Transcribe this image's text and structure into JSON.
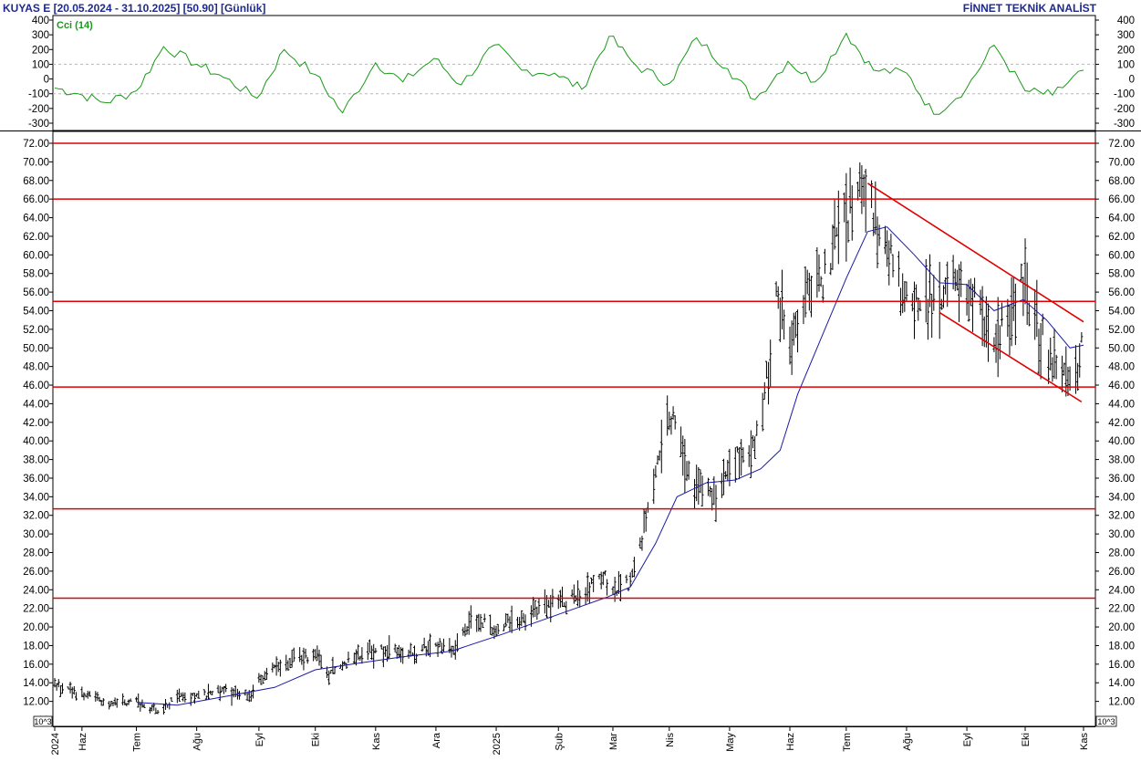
{
  "header": {
    "left": "KUYAS E  [20.05.2024 - 31.10.2025]  [50.90]  [Günlük]",
    "right": "FİNNET TEKNİK ANALİST"
  },
  "colors": {
    "header": "#1f2a8c",
    "price_bars": "#000000",
    "moving_average": "#1a1aa6",
    "cci": "#1a9a1a",
    "horizontal_levels": "#e00000",
    "channel": "#e00000",
    "grid": "#c8c8c8"
  },
  "chart_data": [
    {
      "type": "line",
      "name": "cci-panel",
      "legend": "Cci (14)",
      "ylim": [
        -300,
        400
      ],
      "yticks": [
        400,
        300,
        200,
        100,
        0,
        -100,
        -200,
        -300
      ],
      "y_labels": [
        "400",
        "300",
        "200",
        "100",
        "0",
        "-100",
        "-200",
        "-300"
      ],
      "reference_lines": [
        100,
        -100
      ],
      "x": [
        "2024-05-20",
        "2024-06-01",
        "2024-06-15",
        "2024-07-01",
        "2024-07-15",
        "2024-08-01",
        "2024-08-15",
        "2024-09-01",
        "2024-09-15",
        "2024-10-01",
        "2024-10-15",
        "2024-11-01",
        "2024-11-15",
        "2024-12-01",
        "2024-12-15",
        "2025-01-01",
        "2025-01-15",
        "2025-02-01",
        "2025-02-15",
        "2025-03-01",
        "2025-03-15",
        "2025-04-01",
        "2025-04-15",
        "2025-05-01",
        "2025-05-15",
        "2025-06-01",
        "2025-06-15",
        "2025-07-01",
        "2025-07-15",
        "2025-08-01",
        "2025-08-15",
        "2025-09-01",
        "2025-09-15",
        "2025-10-01",
        "2025-10-15",
        "2025-10-31"
      ],
      "values": [
        -60,
        -100,
        -160,
        -80,
        220,
        100,
        10,
        -130,
        200,
        30,
        -230,
        110,
        -20,
        140,
        -40,
        230,
        60,
        40,
        -70,
        290,
        90,
        -30,
        280,
        70,
        -140,
        120,
        -20,
        310,
        60,
        40,
        -240,
        -60,
        230,
        -80,
        -110,
        60
      ]
    },
    {
      "type": "candlestick",
      "name": "price-panel",
      "ylim": [
        10,
        73
      ],
      "yticks": [
        10,
        12,
        14,
        16,
        18,
        20,
        22,
        24,
        26,
        28,
        30,
        32,
        34,
        36,
        38,
        40,
        42,
        44,
        46,
        48,
        50,
        52,
        54,
        56,
        58,
        60,
        62,
        64,
        66,
        68,
        70,
        72
      ],
      "y_labels": [
        "10",
        "12.00",
        "14.00",
        "16.00",
        "18.00",
        "20.00",
        "22.00",
        "24.00",
        "26.00",
        "28.00",
        "30.00",
        "32.00",
        "34.00",
        "36.00",
        "38.00",
        "40.00",
        "42.00",
        "44.00",
        "46.00",
        "48.00",
        "50.00",
        "52.00",
        "54.00",
        "56.00",
        "58.00",
        "60.00",
        "62.00",
        "64.00",
        "66.00",
        "68.00",
        "70.00",
        "72.00"
      ],
      "y_labels_right": [
        "",
        "12.00",
        "14.00",
        "16.00",
        "18.00",
        "20.00",
        "22.00",
        "24.00",
        "26.00",
        "28.00",
        "30.00",
        "32.00",
        "34.00",
        "36.00",
        "38.00",
        "40.00",
        "42.00",
        "44.00",
        "46.00",
        "48.00",
        "50.00",
        "52.00",
        "54.00",
        "56.00",
        "58.00",
        "60.00",
        "62.00",
        "64.00",
        "66.00",
        "68.00",
        "70.00",
        "72.00"
      ],
      "scale_note": "10^3",
      "x_ticks": [
        {
          "date": "2024-05-20",
          "label": "2024"
        },
        {
          "date": "2024-06-03",
          "label": "Haz"
        },
        {
          "date": "2024-07-01",
          "label": "Tem"
        },
        {
          "date": "2024-08-01",
          "label": "Ağu"
        },
        {
          "date": "2024-09-02",
          "label": "Eyl"
        },
        {
          "date": "2024-10-01",
          "label": "Eki"
        },
        {
          "date": "2024-11-01",
          "label": "Kas"
        },
        {
          "date": "2024-12-02",
          "label": "Ara"
        },
        {
          "date": "2025-01-02",
          "label": "2025"
        },
        {
          "date": "2025-02-03",
          "label": "Şub"
        },
        {
          "date": "2025-03-03",
          "label": "Mar"
        },
        {
          "date": "2025-04-01",
          "label": "Nis"
        },
        {
          "date": "2025-05-02",
          "label": "May"
        },
        {
          "date": "2025-06-02",
          "label": "Haz"
        },
        {
          "date": "2025-07-01",
          "label": "Tem"
        },
        {
          "date": "2025-08-01",
          "label": "Ağu"
        },
        {
          "date": "2025-09-01",
          "label": "Eyl"
        },
        {
          "date": "2025-10-01",
          "label": "Eki"
        },
        {
          "date": "2025-10-31",
          "label": "Kas"
        }
      ],
      "horizontal_levels": [
        72.0,
        66.0,
        55.0,
        45.8,
        32.7,
        23.1
      ],
      "channel": {
        "upper": {
          "from": {
            "date": "2025-07-12",
            "value": 67.7
          },
          "to": {
            "date": "2025-10-31",
            "value": 52.8
          }
        },
        "lower": {
          "from": {
            "date": "2025-08-18",
            "value": 53.8
          },
          "to": {
            "date": "2025-10-30",
            "value": 44.2
          }
        }
      },
      "price_path": [
        {
          "date": "2024-05-20",
          "value": 13.8
        },
        {
          "date": "2024-06-03",
          "value": 12.6
        },
        {
          "date": "2024-06-17",
          "value": 12.0
        },
        {
          "date": "2024-07-01",
          "value": 11.8
        },
        {
          "date": "2024-07-15",
          "value": 11.0
        },
        {
          "date": "2024-07-22",
          "value": 12.8
        },
        {
          "date": "2024-08-01",
          "value": 12.5
        },
        {
          "date": "2024-08-15",
          "value": 13.1
        },
        {
          "date": "2024-08-28",
          "value": 12.6
        },
        {
          "date": "2024-09-05",
          "value": 14.9
        },
        {
          "date": "2024-09-20",
          "value": 16.6
        },
        {
          "date": "2024-10-01",
          "value": 16.9
        },
        {
          "date": "2024-10-08",
          "value": 15.0
        },
        {
          "date": "2024-10-20",
          "value": 16.8
        },
        {
          "date": "2024-11-05",
          "value": 17.5
        },
        {
          "date": "2024-11-20",
          "value": 17.0
        },
        {
          "date": "2024-12-01",
          "value": 18.3
        },
        {
          "date": "2024-12-10",
          "value": 17.2
        },
        {
          "date": "2024-12-20",
          "value": 20.6
        },
        {
          "date": "2025-01-02",
          "value": 19.8
        },
        {
          "date": "2025-01-20",
          "value": 21.5
        },
        {
          "date": "2025-02-01",
          "value": 22.6
        },
        {
          "date": "2025-02-17",
          "value": 23.2
        },
        {
          "date": "2025-02-24",
          "value": 25.4
        },
        {
          "date": "2025-03-05",
          "value": 24.3
        },
        {
          "date": "2025-03-12",
          "value": 24.6
        },
        {
          "date": "2025-03-20",
          "value": 31.0
        },
        {
          "date": "2025-03-28",
          "value": 40.0
        },
        {
          "date": "2025-04-03",
          "value": 43.5
        },
        {
          "date": "2025-04-08",
          "value": 38.0
        },
        {
          "date": "2025-04-15",
          "value": 35.0
        },
        {
          "date": "2025-04-25",
          "value": 34.0
        },
        {
          "date": "2025-05-05",
          "value": 38.5
        },
        {
          "date": "2025-05-12",
          "value": 37.5
        },
        {
          "date": "2025-05-20",
          "value": 44.5
        },
        {
          "date": "2025-05-26",
          "value": 55.0
        },
        {
          "date": "2025-06-02",
          "value": 50.0
        },
        {
          "date": "2025-06-10",
          "value": 55.0
        },
        {
          "date": "2025-06-20",
          "value": 58.0
        },
        {
          "date": "2025-06-30",
          "value": 63.0
        },
        {
          "date": "2025-07-08",
          "value": 68.5
        },
        {
          "date": "2025-07-15",
          "value": 64.0
        },
        {
          "date": "2025-07-22",
          "value": 61.5
        },
        {
          "date": "2025-07-29",
          "value": 56.0
        },
        {
          "date": "2025-08-08",
          "value": 54.5
        },
        {
          "date": "2025-08-18",
          "value": 56.0
        },
        {
          "date": "2025-08-25",
          "value": 57.0
        },
        {
          "date": "2025-09-02",
          "value": 55.5
        },
        {
          "date": "2025-09-09",
          "value": 54.0
        },
        {
          "date": "2025-09-16",
          "value": 51.0
        },
        {
          "date": "2025-09-23",
          "value": 53.0
        },
        {
          "date": "2025-09-30",
          "value": 57.5
        },
        {
          "date": "2025-10-06",
          "value": 53.0
        },
        {
          "date": "2025-10-13",
          "value": 49.5
        },
        {
          "date": "2025-10-20",
          "value": 48.0
        },
        {
          "date": "2025-10-27",
          "value": 47.0
        },
        {
          "date": "2025-10-31",
          "value": 50.9
        }
      ],
      "moving_average": [
        {
          "date": "2024-07-01",
          "value": 11.9
        },
        {
          "date": "2024-07-22",
          "value": 11.6
        },
        {
          "date": "2024-08-15",
          "value": 12.5
        },
        {
          "date": "2024-09-10",
          "value": 13.5
        },
        {
          "date": "2024-10-01",
          "value": 15.4
        },
        {
          "date": "2024-10-20",
          "value": 16.0
        },
        {
          "date": "2024-11-15",
          "value": 16.8
        },
        {
          "date": "2024-12-10",
          "value": 17.4
        },
        {
          "date": "2025-01-05",
          "value": 19.2
        },
        {
          "date": "2025-02-01",
          "value": 21.2
        },
        {
          "date": "2025-02-28",
          "value": 23.2
        },
        {
          "date": "2025-03-12",
          "value": 24.3
        },
        {
          "date": "2025-03-25",
          "value": 29.0
        },
        {
          "date": "2025-04-05",
          "value": 34.0
        },
        {
          "date": "2025-04-20",
          "value": 35.5
        },
        {
          "date": "2025-05-05",
          "value": 35.8
        },
        {
          "date": "2025-05-18",
          "value": 37.0
        },
        {
          "date": "2025-05-28",
          "value": 39.0
        },
        {
          "date": "2025-06-06",
          "value": 45.0
        },
        {
          "date": "2025-06-18",
          "value": 51.0
        },
        {
          "date": "2025-07-01",
          "value": 57.5
        },
        {
          "date": "2025-07-12",
          "value": 62.5
        },
        {
          "date": "2025-07-22",
          "value": 63.0
        },
        {
          "date": "2025-08-05",
          "value": 60.0
        },
        {
          "date": "2025-08-18",
          "value": 57.0
        },
        {
          "date": "2025-09-01",
          "value": 56.8
        },
        {
          "date": "2025-09-15",
          "value": 54.0
        },
        {
          "date": "2025-09-30",
          "value": 55.2
        },
        {
          "date": "2025-10-12",
          "value": 53.0
        },
        {
          "date": "2025-10-24",
          "value": 50.0
        },
        {
          "date": "2025-10-31",
          "value": 50.3
        }
      ]
    }
  ]
}
